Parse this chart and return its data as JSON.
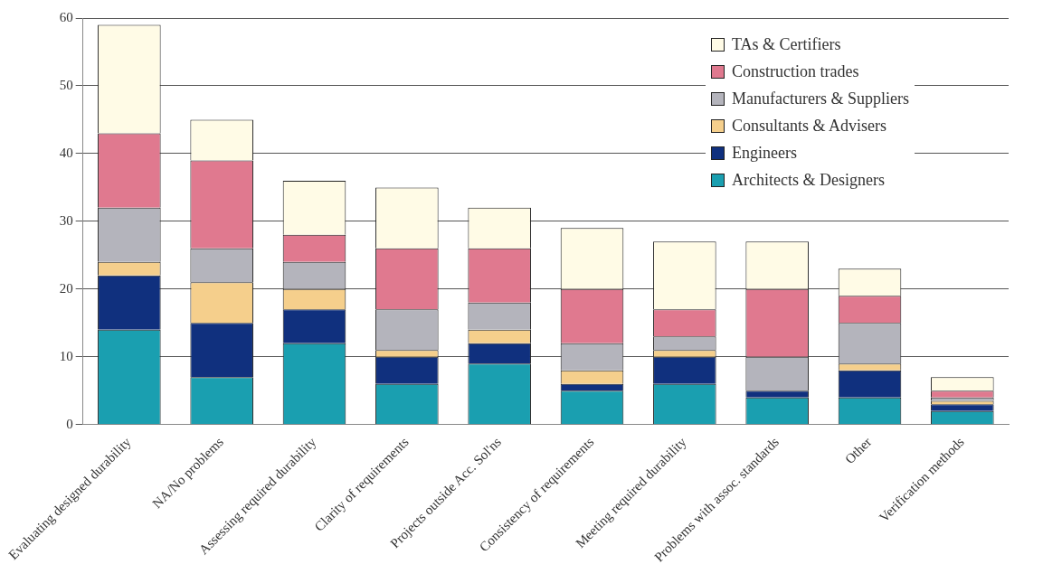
{
  "chart_data": {
    "type": "bar",
    "stacked": true,
    "categories": [
      "Evaluating designed durability",
      "NA/No problems",
      "Assessing required durability",
      "Clarity of requirements",
      "Projects outside Acc. Sol'ns",
      "Consistency of requirements",
      "Meeting required durability",
      "Problems with assoc. standards",
      "Other",
      "Verification methods"
    ],
    "series": [
      {
        "name": "Architects & Designers",
        "color": "#1a9fb0",
        "values": [
          14,
          7,
          12,
          6,
          9,
          5,
          6,
          4,
          4,
          2
        ]
      },
      {
        "name": "Engineers",
        "color": "#10307e",
        "values": [
          8,
          8,
          5,
          4,
          3,
          1,
          4,
          1,
          4,
          1
        ]
      },
      {
        "name": "Consultants & Advisers",
        "color": "#f5cf8c",
        "values": [
          2,
          6,
          3,
          1,
          2,
          2,
          1,
          0,
          1,
          0.5
        ]
      },
      {
        "name": "Manufacturers & Suppliers",
        "color": "#b4b4bc",
        "values": [
          8,
          5,
          4,
          6,
          4,
          4,
          2,
          5,
          6,
          0.5
        ]
      },
      {
        "name": "Construction trades",
        "color": "#e0798f",
        "values": [
          11,
          13,
          4,
          9,
          8,
          8,
          4,
          10,
          4,
          1
        ]
      },
      {
        "name": "TAs & Certifiers",
        "color": "#fffbe6",
        "values": [
          16,
          6,
          8,
          9,
          6,
          9,
          10,
          7,
          4,
          2
        ]
      }
    ],
    "ylim": [
      0,
      60
    ],
    "yticks": [
      0,
      10,
      20,
      30,
      40,
      50,
      60
    ],
    "grid": "y",
    "legend": "top right"
  }
}
